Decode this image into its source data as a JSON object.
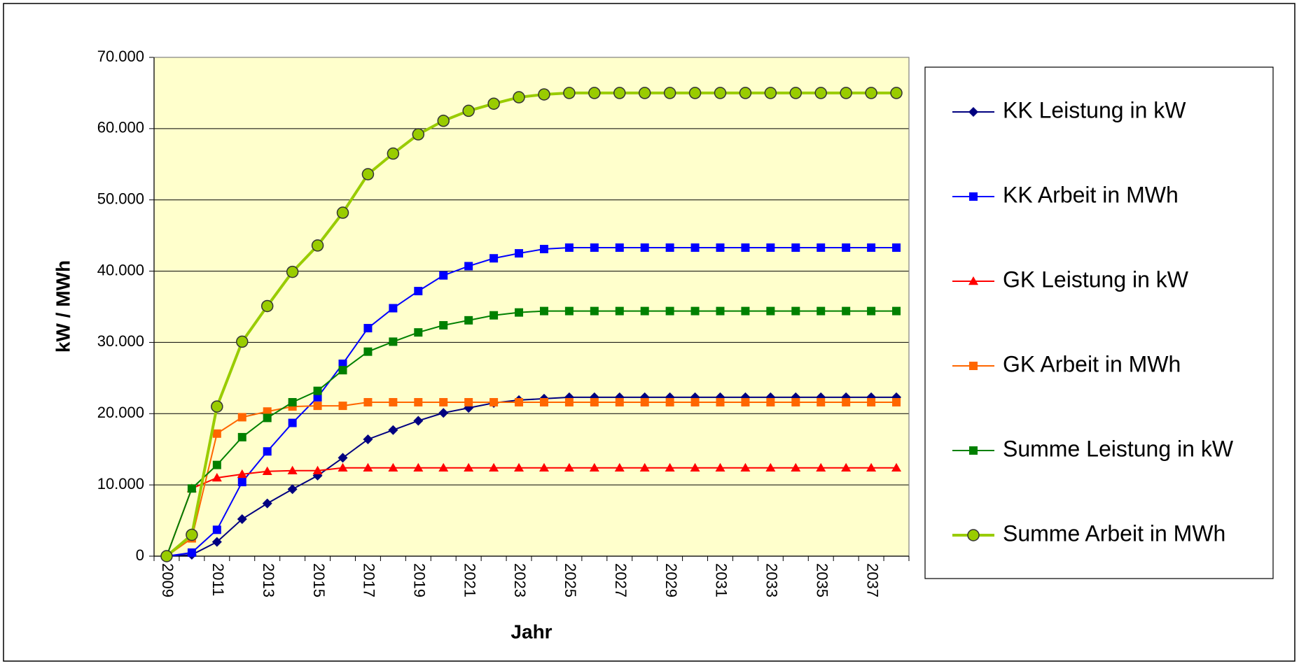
{
  "chart_data": {
    "type": "line",
    "xlabel": "Jahr",
    "ylabel": "kW / MWh",
    "categories": [
      "2009",
      null,
      "2011",
      null,
      "2013",
      null,
      "2015",
      null,
      "2017",
      null,
      "2019",
      null,
      "2021",
      null,
      "2023",
      null,
      "2025",
      null,
      "2027",
      null,
      "2029",
      null,
      "2031",
      null,
      "2033",
      null,
      "2035",
      null,
      "2037",
      null
    ],
    "ylim": [
      0,
      70000
    ],
    "yticks": [
      0,
      {
        "value": 10000,
        "label": "10.000"
      },
      {
        "value": 20000,
        "label": "20.000"
      },
      {
        "value": 30000,
        "label": "30.000"
      },
      {
        "value": 40000,
        "label": "40.000"
      },
      {
        "value": 50000,
        "label": "50.000"
      },
      {
        "value": 60000,
        "label": "60.000"
      },
      {
        "value": 70000,
        "label": "70.000"
      }
    ],
    "grid": true,
    "legend": "right",
    "series": [
      {
        "name": "KK Leistung in kW",
        "color": "#000080",
        "marker": "diamond",
        "values": [
          0,
          200,
          2000,
          5200,
          7400,
          9400,
          11300,
          13800,
          16400,
          17700,
          19000,
          20100,
          20800,
          21500,
          21900,
          22100,
          22300,
          22300,
          22300,
          22300,
          22300,
          22300,
          22300,
          22300,
          22300,
          22300,
          22300,
          22300,
          22300,
          22300
        ]
      },
      {
        "name": "KK Arbeit in MWh",
        "color": "#0000ff",
        "marker": "square",
        "values": [
          0,
          500,
          3700,
          10400,
          14700,
          18700,
          22300,
          27000,
          32000,
          34800,
          37200,
          39400,
          40700,
          41800,
          42500,
          43100,
          43300,
          43300,
          43300,
          43300,
          43300,
          43300,
          43300,
          43300,
          43300,
          43300,
          43300,
          43300,
          43300,
          43300
        ]
      },
      {
        "name": "GK Leistung in kW",
        "color": "#ff0000",
        "marker": "triangle",
        "values": [
          0,
          9500,
          11000,
          11500,
          11900,
          12000,
          12000,
          12400,
          12400,
          12400,
          12400,
          12400,
          12400,
          12400,
          12400,
          12400,
          12400,
          12400,
          12400,
          12400,
          12400,
          12400,
          12400,
          12400,
          12400,
          12400,
          12400,
          12400,
          12400,
          12400
        ]
      },
      {
        "name": "GK Arbeit in MWh",
        "color": "#ff6600",
        "marker": "square",
        "values": [
          0,
          2500,
          17200,
          19500,
          20300,
          21000,
          21100,
          21100,
          21600,
          21600,
          21600,
          21600,
          21600,
          21600,
          21600,
          21600,
          21600,
          21600,
          21600,
          21600,
          21600,
          21600,
          21600,
          21600,
          21600,
          21600,
          21600,
          21600,
          21600,
          21600
        ]
      },
      {
        "name": "Summe Leistung in kW",
        "color": "#008000",
        "marker": "square",
        "values": [
          0,
          9500,
          12800,
          16700,
          19400,
          21600,
          23200,
          26100,
          28700,
          30100,
          31400,
          32400,
          33100,
          33800,
          34200,
          34400,
          34400,
          34400,
          34400,
          34400,
          34400,
          34400,
          34400,
          34400,
          34400,
          34400,
          34400,
          34400,
          34400,
          34400
        ]
      },
      {
        "name": "Summe Arbeit in MWh",
        "color": "#99cc00",
        "marker": "circle",
        "values": [
          0,
          3000,
          21000,
          30100,
          35100,
          39900,
          43600,
          48200,
          53600,
          56500,
          59200,
          61100,
          62500,
          63500,
          64400,
          64800,
          65000,
          65000,
          65000,
          65000,
          65000,
          65000,
          65000,
          65000,
          65000,
          65000,
          65000,
          65000,
          65000,
          65000
        ]
      }
    ]
  }
}
